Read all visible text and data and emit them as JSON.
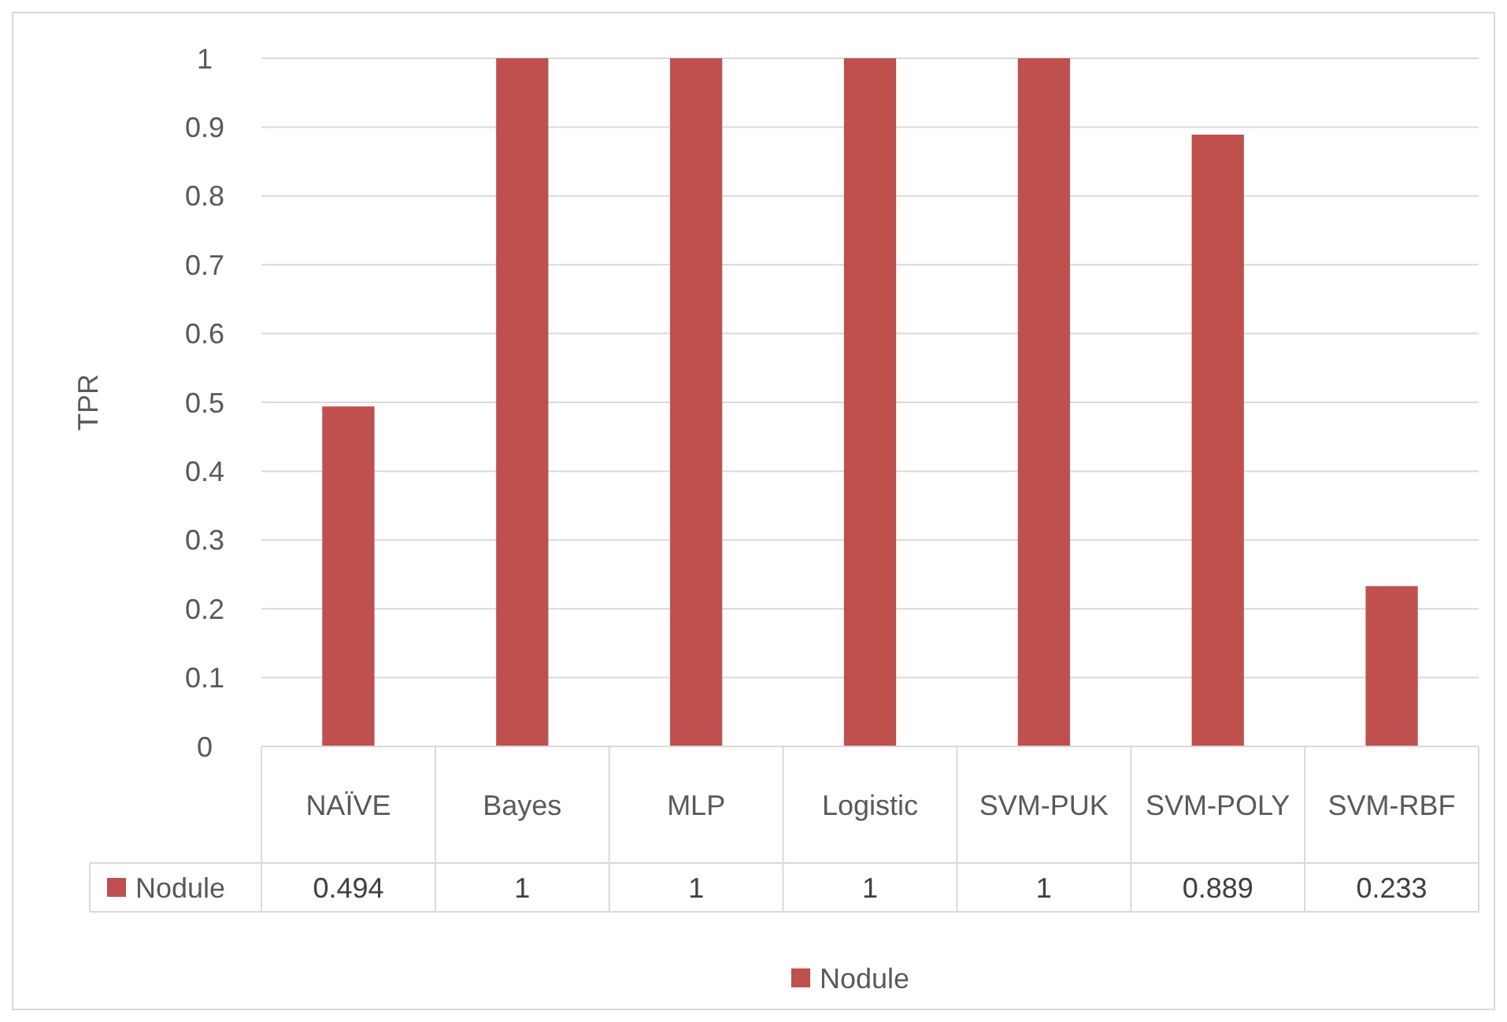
{
  "chart_data": {
    "type": "bar",
    "ylabel": "TPR",
    "categories": [
      "NAÏVE",
      "Bayes",
      "MLP",
      "Logistic",
      "SVM-PUK",
      "SVM-POLY",
      "SVM-RBF"
    ],
    "series": [
      {
        "name": "Nodule",
        "color": "#c0504d",
        "values": [
          0.494,
          1,
          1,
          1,
          1,
          0.889,
          0.233
        ]
      }
    ],
    "ylim": [
      0,
      1
    ],
    "yticks": [
      0,
      {
        "value": 0.1,
        "label": "0.1"
      },
      {
        "value": 0.2,
        "label": "0.2"
      },
      {
        "value": 0.3,
        "label": "0.3"
      },
      {
        "value": 0.4,
        "label": "0.4"
      },
      {
        "value": 0.5,
        "label": "0.5"
      },
      {
        "value": 0.6,
        "label": "0.6"
      },
      {
        "value": 0.7,
        "label": "0.7"
      },
      {
        "value": 0.8,
        "label": "0.8"
      },
      {
        "value": 0.9,
        "label": "0.9"
      },
      1
    ],
    "grid": "y",
    "legend": "bottom",
    "data_labels": true
  }
}
